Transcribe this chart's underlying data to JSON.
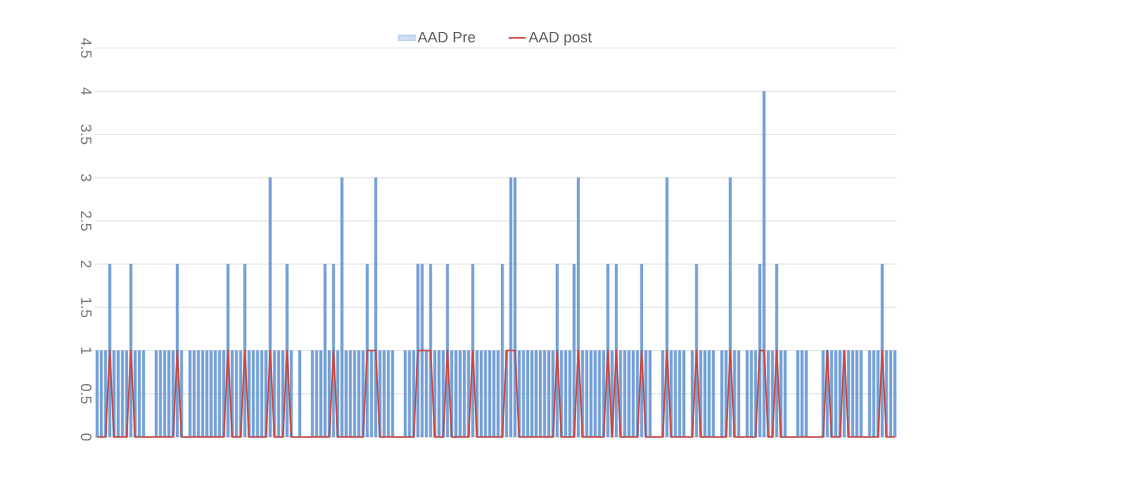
{
  "chart_data": {
    "type": "bar",
    "categories": [
      null,
      null,
      null,
      null,
      null,
      null,
      null,
      null,
      null,
      null,
      null,
      null,
      null,
      null,
      null,
      null,
      null,
      null,
      null,
      null,
      null,
      null,
      null,
      null,
      null,
      null,
      null,
      null,
      null,
      null,
      null,
      null,
      null,
      null,
      null,
      null,
      null,
      null,
      null,
      null,
      null,
      null,
      null,
      null,
      null,
      null,
      null,
      null,
      null,
      null,
      null,
      null,
      null,
      null,
      null,
      null,
      null,
      null,
      null,
      null,
      null,
      null,
      null,
      null,
      null,
      null,
      null,
      null,
      null,
      null,
      null,
      null,
      null,
      null,
      null,
      null,
      null,
      null,
      null,
      null,
      null,
      null,
      null,
      null,
      null,
      null,
      null,
      null,
      null,
      null,
      null,
      null,
      null,
      null,
      null,
      null,
      null,
      null,
      null,
      null,
      null,
      null,
      null,
      null,
      null,
      null,
      null,
      null,
      null,
      null,
      null,
      null,
      null,
      null,
      null,
      null,
      null,
      null,
      null,
      null,
      null,
      null,
      null,
      null,
      null,
      null,
      null,
      null,
      null,
      null,
      null,
      null,
      null,
      null,
      null,
      null,
      null,
      null,
      null,
      null,
      null,
      null,
      null,
      null,
      null,
      null,
      null,
      null,
      null,
      null,
      null,
      null,
      null,
      null,
      null,
      null,
      null,
      null,
      null,
      null,
      null,
      null,
      null,
      null,
      null,
      null,
      null,
      null,
      null,
      null,
      null,
      null,
      null,
      null,
      null,
      null,
      null,
      null,
      null,
      null,
      null,
      null,
      null,
      null,
      null,
      null,
      null,
      null,
      null,
      null
    ],
    "series": [
      {
        "name": "AAD Pre",
        "color": "#5b8fd0",
        "values": [
          1,
          1,
          1,
          2,
          1,
          1,
          1,
          1,
          2,
          1,
          1,
          1,
          0,
          0,
          1,
          1,
          1,
          1,
          1,
          2,
          1,
          0,
          1,
          1,
          1,
          1,
          1,
          1,
          1,
          1,
          1,
          2,
          1,
          1,
          1,
          2,
          1,
          1,
          1,
          1,
          1,
          3,
          1,
          1,
          1,
          2,
          1,
          0,
          1,
          0,
          0,
          1,
          1,
          1,
          2,
          1,
          2,
          1,
          3,
          1,
          1,
          1,
          1,
          1,
          2,
          1,
          3,
          1,
          1,
          1,
          1,
          0,
          0,
          1,
          1,
          1,
          2,
          2,
          1,
          2,
          1,
          1,
          1,
          2,
          1,
          1,
          1,
          1,
          1,
          2,
          1,
          1,
          1,
          1,
          1,
          1,
          2,
          1,
          3,
          3,
          1,
          1,
          1,
          1,
          1,
          1,
          1,
          1,
          1,
          2,
          1,
          1,
          1,
          2,
          3,
          1,
          1,
          1,
          1,
          1,
          1,
          2,
          1,
          2,
          1,
          1,
          1,
          1,
          1,
          2,
          1,
          1,
          0,
          0,
          1,
          3,
          1,
          1,
          1,
          1,
          0,
          1,
          2,
          1,
          1,
          1,
          1,
          0,
          1,
          1,
          3,
          1,
          1,
          0,
          1,
          1,
          1,
          2,
          4,
          1,
          1,
          2,
          1,
          1,
          0,
          0,
          1,
          1,
          1,
          0,
          0,
          0,
          1,
          1,
          1,
          1,
          1,
          1,
          1,
          1,
          1,
          1,
          0,
          1,
          1,
          1,
          2,
          1,
          1,
          1
        ]
      },
      {
        "name": "AAD post",
        "type": "line",
        "color": "#c8463f",
        "values": [
          0,
          0,
          0,
          1,
          0,
          0,
          0,
          0,
          1,
          0,
          0,
          0,
          0,
          0,
          0,
          0,
          0,
          0,
          0,
          1,
          0,
          0,
          0,
          0,
          0,
          0,
          0,
          0,
          0,
          0,
          0,
          1,
          0,
          0,
          0,
          1,
          0,
          0,
          0,
          0,
          0,
          1,
          0,
          0,
          0,
          1,
          0,
          0,
          0,
          0,
          0,
          0,
          0,
          0,
          0,
          0,
          1,
          0,
          0,
          0,
          0,
          0,
          0,
          0,
          1,
          1,
          1,
          0,
          0,
          0,
          0,
          0,
          0,
          0,
          0,
          0,
          1,
          1,
          1,
          1,
          0,
          0,
          0,
          1,
          0,
          0,
          0,
          0,
          0,
          1,
          0,
          0,
          0,
          0,
          0,
          0,
          0,
          1,
          1,
          1,
          0,
          0,
          0,
          0,
          0,
          0,
          0,
          0,
          0,
          1,
          0,
          0,
          0,
          0,
          1,
          0,
          0,
          0,
          0,
          0,
          0,
          1,
          0,
          1,
          0,
          0,
          0,
          0,
          0,
          1,
          0,
          0,
          0,
          0,
          0,
          1,
          0,
          0,
          0,
          0,
          0,
          0,
          1,
          0,
          0,
          0,
          0,
          0,
          0,
          0,
          1,
          0,
          0,
          0,
          0,
          0,
          0,
          1,
          1,
          0,
          0,
          1,
          0,
          0,
          0,
          0,
          0,
          0,
          0,
          0,
          0,
          0,
          0,
          1,
          0,
          0,
          0,
          1,
          0,
          0,
          0,
          0,
          0,
          0,
          0,
          0,
          1,
          0,
          0,
          0
        ]
      }
    ],
    "ylim": [
      0,
      4.5
    ],
    "yticks": [
      0,
      0.5,
      1,
      1.5,
      2,
      2.5,
      3,
      3.5,
      4,
      4.5
    ],
    "grid": "y",
    "legend": "top"
  }
}
